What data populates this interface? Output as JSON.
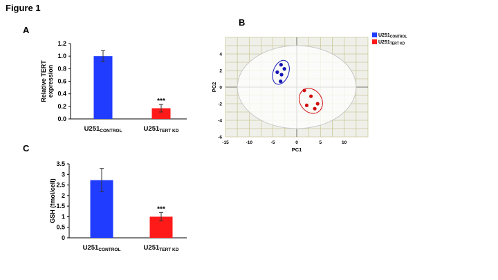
{
  "figure_title": "Figure 1",
  "panels": {
    "a": "A",
    "b": "B",
    "c": "C"
  },
  "colors": {
    "control": "#1f3cff",
    "kd": "#ff1a1a",
    "cluster_blue": "#1414b4",
    "cluster_red": "#d01010",
    "grid": "#c9c99a",
    "plot_bg": "#f0f0ea",
    "ellipse": "#c8c8c8"
  },
  "chart_data": [
    {
      "id": "A",
      "type": "bar",
      "ylabel_lines": [
        "Relative TERT",
        "expression"
      ],
      "ylim": [
        0,
        1.2
      ],
      "yticks": [
        "0.0",
        "0.2",
        "0.4",
        "0.6",
        "0.8",
        "1.0",
        "1.2"
      ],
      "tick_values": [
        0,
        0.2,
        0.4,
        0.6,
        0.8,
        1.0,
        1.2
      ],
      "categories": [
        {
          "base": "U251",
          "sub": "CONTROL",
          "value": 1.0,
          "err": 0.09,
          "annotation": "",
          "color": "control"
        },
        {
          "base": "U251",
          "sub": "TERT KD",
          "value": 0.17,
          "err": 0.06,
          "annotation": "***",
          "color": "kd"
        }
      ]
    },
    {
      "id": "C",
      "type": "bar",
      "ylabel_lines": [
        "GSH (fmol/cell)"
      ],
      "ylim": [
        0,
        3.5
      ],
      "yticks": [
        "0",
        "0.5",
        "1",
        "1.5",
        "2",
        "2.5",
        "3",
        "3.5"
      ],
      "tick_values": [
        0,
        0.5,
        1,
        1.5,
        2,
        2.5,
        3,
        3.5
      ],
      "categories": [
        {
          "base": "U251",
          "sub": "CONTROL",
          "value": 2.73,
          "err": 0.55,
          "annotation": "",
          "color": "control"
        },
        {
          "base": "U251",
          "sub": "TERT KD",
          "value": 1.0,
          "err": 0.2,
          "annotation": "***",
          "color": "kd"
        }
      ]
    },
    {
      "id": "B",
      "type": "scatter",
      "xlabel": "PC1",
      "ylabel": "PC2",
      "xlim": [
        -15,
        15
      ],
      "ylim": [
        -6,
        6
      ],
      "xticks": [
        "-15",
        "-10",
        "-5",
        "0",
        "5",
        "10"
      ],
      "xtick_values": [
        -15,
        -10,
        -5,
        0,
        5,
        10
      ],
      "yticks": [
        "-6",
        "-4",
        "-2",
        "0",
        "2",
        "4"
      ],
      "ytick_values": [
        -6,
        -4,
        -2,
        0,
        2,
        4
      ],
      "legend_position": "top-right",
      "series": [
        {
          "base": "U251",
          "sub": "CONTROL",
          "color": "control",
          "point_color": "cluster_blue",
          "points": [
            [
              -3.3,
              2.7
            ],
            [
              -2.6,
              2.2
            ],
            [
              -4.1,
              1.8
            ],
            [
              -3.2,
              1.5
            ],
            [
              -3.4,
              0.7
            ]
          ]
        },
        {
          "base": "U251",
          "sub": "TERT KD",
          "color": "kd",
          "point_color": "cluster_red",
          "points": [
            [
              1.6,
              -0.4
            ],
            [
              3.0,
              -1.1
            ],
            [
              4.4,
              -2.0
            ],
            [
              2.1,
              -2.2
            ],
            [
              3.8,
              -2.6
            ]
          ]
        }
      ],
      "confidence_ellipse": {
        "cx": 0,
        "cy": 0,
        "rx": 12.5,
        "ry": 5
      }
    }
  ]
}
